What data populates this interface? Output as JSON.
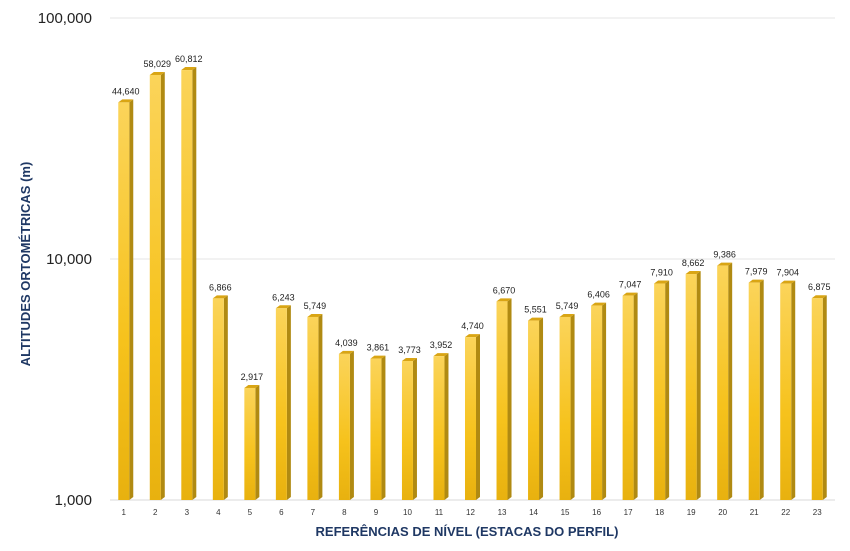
{
  "chart_data": {
    "type": "bar",
    "title": "",
    "xlabel": "REFERÊNCIAS DE NÍVEL (ESTACAS DO PERFIL)",
    "ylabel": "ALTITUDES ORTOMÉTRICAS (m)",
    "yscale": "log",
    "ylim": [
      1000,
      100000
    ],
    "yticks": [
      1000,
      10000,
      100000
    ],
    "ytick_labels": [
      "1,000",
      "10,000",
      "100,000"
    ],
    "grid": true,
    "legend": "none",
    "bar_color": "#f7c325",
    "bar_side_color": "#b08a12",
    "categories": [
      "1",
      "2",
      "3",
      "4",
      "5",
      "6",
      "7",
      "8",
      "9",
      "10",
      "11",
      "12",
      "13",
      "14",
      "15",
      "16",
      "17",
      "18",
      "19",
      "20",
      "21",
      "22",
      "23"
    ],
    "values": [
      44640,
      58029,
      60812,
      6866,
      2917,
      6243,
      5749,
      4039,
      3861,
      3773,
      3952,
      4740,
      6670,
      5551,
      5749,
      6406,
      7047,
      7910,
      8662,
      9386,
      7979,
      7904,
      6875
    ],
    "value_labels": [
      "44,640",
      "58,029",
      "60,812",
      "6,866",
      "2,917",
      "6,243",
      "5,749",
      "4,039",
      "3,861",
      "3,773",
      "3,952",
      "4,740",
      "6,670",
      "5,551",
      "5,749",
      "6,406",
      "7,047",
      "7,910",
      "8,662",
      "9,386",
      "7,979",
      "7,904",
      "6,875"
    ]
  }
}
